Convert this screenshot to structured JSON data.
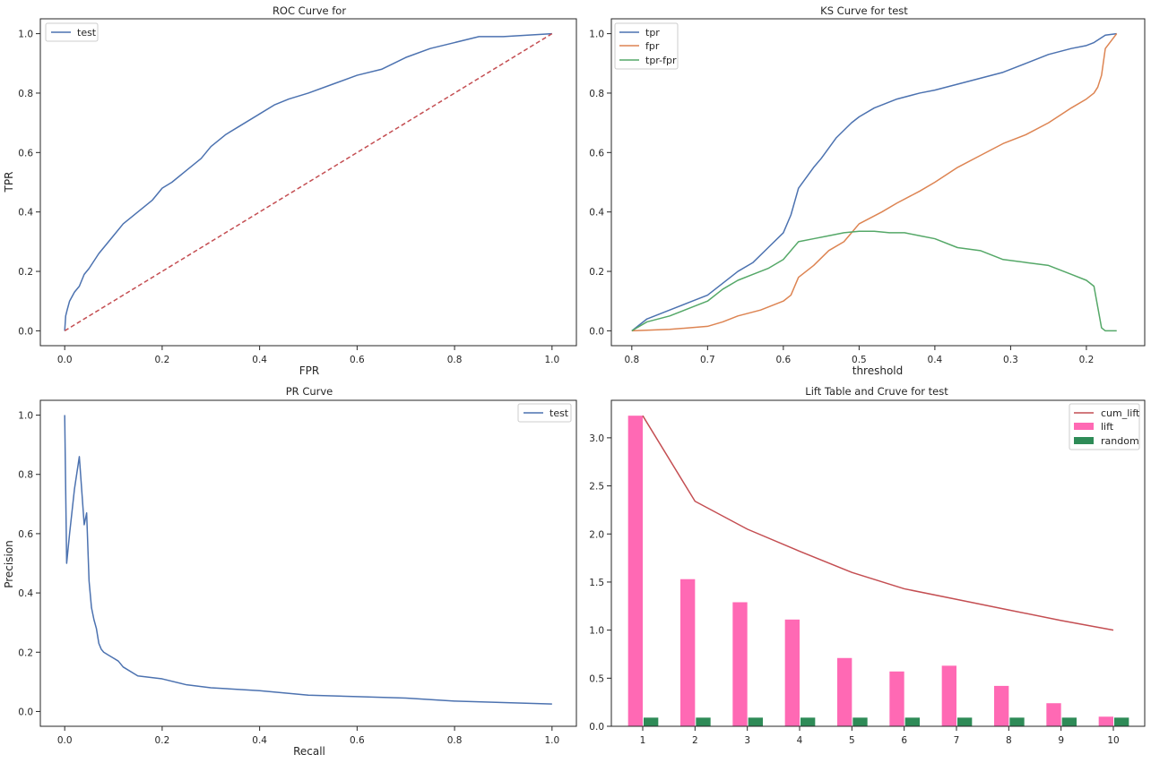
{
  "colors": {
    "blue": "#4c72b0",
    "orange": "#dd8452",
    "green": "#55a868",
    "red": "#c44e52",
    "pink": "#ff69b4",
    "darkgreen": "#2e8b57",
    "axis": "#262626"
  },
  "chart_data": [
    {
      "type": "line",
      "title": "ROC Curve for",
      "xlabel": "FPR",
      "ylabel": "TPR",
      "xlim": [
        -0.05,
        1.05
      ],
      "ylim": [
        -0.05,
        1.05
      ],
      "xticks": [
        0.0,
        0.2,
        0.4,
        0.6,
        0.8,
        1.0
      ],
      "yticks": [
        0.0,
        0.2,
        0.4,
        0.6,
        0.8,
        1.0
      ],
      "xtick_labels": [
        "0.0",
        "0.2",
        "0.4",
        "0.6",
        "0.8",
        "1.0"
      ],
      "ytick_labels": [
        "0.0",
        "0.2",
        "0.4",
        "0.6",
        "0.8",
        "1.0"
      ],
      "legend_position": "upper-left",
      "series": [
        {
          "name": "test",
          "color": "#4c72b0",
          "style": "solid",
          "in_legend": true,
          "x": [
            0.0,
            0.002,
            0.005,
            0.01,
            0.02,
            0.03,
            0.04,
            0.05,
            0.07,
            0.1,
            0.12,
            0.15,
            0.18,
            0.2,
            0.22,
            0.25,
            0.28,
            0.3,
            0.33,
            0.36,
            0.4,
            0.43,
            0.46,
            0.5,
            0.55,
            0.6,
            0.65,
            0.7,
            0.75,
            0.8,
            0.85,
            0.9,
            0.95,
            1.0
          ],
          "y": [
            0.0,
            0.05,
            0.07,
            0.1,
            0.13,
            0.15,
            0.19,
            0.21,
            0.26,
            0.32,
            0.36,
            0.4,
            0.44,
            0.48,
            0.5,
            0.54,
            0.58,
            0.62,
            0.66,
            0.69,
            0.73,
            0.76,
            0.78,
            0.8,
            0.83,
            0.86,
            0.88,
            0.92,
            0.95,
            0.97,
            0.99,
            0.99,
            0.995,
            1.0
          ]
        },
        {
          "name": "baseline",
          "color": "#c44e52",
          "style": "dashed",
          "in_legend": false,
          "x": [
            0.0,
            1.0
          ],
          "y": [
            0.0,
            1.0
          ]
        }
      ]
    },
    {
      "type": "line",
      "title": "KS Curve for test",
      "xlabel": "threshold",
      "ylabel": "",
      "xlim": [
        0.827,
        0.123
      ],
      "ylim": [
        -0.05,
        1.05
      ],
      "xticks": [
        0.8,
        0.7,
        0.6,
        0.5,
        0.4,
        0.3,
        0.2
      ],
      "yticks": [
        0.0,
        0.2,
        0.4,
        0.6,
        0.8,
        1.0
      ],
      "xtick_labels": [
        "0.8",
        "0.7",
        "0.6",
        "0.5",
        "0.4",
        "0.3",
        "0.2"
      ],
      "ytick_labels": [
        "0.0",
        "0.2",
        "0.4",
        "0.6",
        "0.8",
        "1.0"
      ],
      "legend_position": "upper-left",
      "series": [
        {
          "name": "tpr",
          "color": "#4c72b0",
          "in_legend": true,
          "x": [
            0.8,
            0.78,
            0.75,
            0.72,
            0.7,
            0.68,
            0.66,
            0.64,
            0.62,
            0.6,
            0.59,
            0.58,
            0.56,
            0.55,
            0.53,
            0.51,
            0.5,
            0.48,
            0.45,
            0.42,
            0.4,
            0.37,
            0.34,
            0.31,
            0.28,
            0.25,
            0.22,
            0.2,
            0.19,
            0.175,
            0.16
          ],
          "y": [
            0.0,
            0.04,
            0.07,
            0.1,
            0.12,
            0.16,
            0.2,
            0.23,
            0.28,
            0.33,
            0.39,
            0.48,
            0.55,
            0.58,
            0.65,
            0.7,
            0.72,
            0.75,
            0.78,
            0.8,
            0.81,
            0.83,
            0.85,
            0.87,
            0.9,
            0.93,
            0.95,
            0.96,
            0.97,
            0.995,
            1.0
          ]
        },
        {
          "name": "fpr",
          "color": "#dd8452",
          "in_legend": true,
          "x": [
            0.8,
            0.75,
            0.7,
            0.68,
            0.66,
            0.63,
            0.6,
            0.59,
            0.58,
            0.56,
            0.54,
            0.52,
            0.5,
            0.47,
            0.45,
            0.42,
            0.4,
            0.37,
            0.34,
            0.31,
            0.28,
            0.25,
            0.22,
            0.2,
            0.19,
            0.185,
            0.18,
            0.175,
            0.16
          ],
          "y": [
            0.0,
            0.005,
            0.015,
            0.03,
            0.05,
            0.07,
            0.1,
            0.12,
            0.18,
            0.22,
            0.27,
            0.3,
            0.36,
            0.4,
            0.43,
            0.47,
            0.5,
            0.55,
            0.59,
            0.63,
            0.66,
            0.7,
            0.75,
            0.78,
            0.8,
            0.82,
            0.86,
            0.95,
            1.0
          ]
        },
        {
          "name": "tpr-fpr",
          "color": "#55a868",
          "in_legend": true,
          "x": [
            0.8,
            0.78,
            0.75,
            0.72,
            0.7,
            0.68,
            0.66,
            0.64,
            0.62,
            0.6,
            0.58,
            0.56,
            0.54,
            0.52,
            0.5,
            0.48,
            0.46,
            0.44,
            0.42,
            0.4,
            0.37,
            0.34,
            0.31,
            0.28,
            0.25,
            0.22,
            0.2,
            0.19,
            0.185,
            0.18,
            0.175,
            0.16
          ],
          "y": [
            0.0,
            0.03,
            0.05,
            0.08,
            0.1,
            0.14,
            0.17,
            0.19,
            0.21,
            0.24,
            0.3,
            0.31,
            0.32,
            0.33,
            0.335,
            0.335,
            0.33,
            0.33,
            0.32,
            0.31,
            0.28,
            0.27,
            0.24,
            0.23,
            0.22,
            0.19,
            0.17,
            0.15,
            0.08,
            0.01,
            0.0,
            0.0
          ]
        }
      ]
    },
    {
      "type": "line",
      "title": "PR Curve",
      "xlabel": "Recall",
      "ylabel": "Precision",
      "xlim": [
        -0.05,
        1.05
      ],
      "ylim": [
        -0.05,
        1.05
      ],
      "xticks": [
        0.0,
        0.2,
        0.4,
        0.6,
        0.8,
        1.0
      ],
      "yticks": [
        0.0,
        0.2,
        0.4,
        0.6,
        0.8,
        1.0
      ],
      "xtick_labels": [
        "0.0",
        "0.2",
        "0.4",
        "0.6",
        "0.8",
        "1.0"
      ],
      "ytick_labels": [
        "0.0",
        "0.2",
        "0.4",
        "0.6",
        "0.8",
        "1.0"
      ],
      "legend_position": "upper-right",
      "series": [
        {
          "name": "test",
          "color": "#4c72b0",
          "in_legend": true,
          "x": [
            0.0,
            0.004,
            0.01,
            0.02,
            0.03,
            0.04,
            0.045,
            0.05,
            0.055,
            0.06,
            0.065,
            0.07,
            0.075,
            0.08,
            0.09,
            0.1,
            0.11,
            0.12,
            0.15,
            0.2,
            0.25,
            0.3,
            0.4,
            0.5,
            0.6,
            0.7,
            0.8,
            0.9,
            1.0
          ],
          "y": [
            1.0,
            0.5,
            0.6,
            0.75,
            0.86,
            0.63,
            0.67,
            0.44,
            0.35,
            0.31,
            0.28,
            0.23,
            0.21,
            0.2,
            0.19,
            0.18,
            0.17,
            0.15,
            0.12,
            0.11,
            0.09,
            0.08,
            0.07,
            0.055,
            0.05,
            0.045,
            0.035,
            0.03,
            0.025
          ]
        }
      ]
    },
    {
      "type": "bar",
      "title": "Lift Table and Cruve for test",
      "xlabel": "",
      "ylabel": "",
      "categories": [
        "1",
        "2",
        "3",
        "4",
        "5",
        "6",
        "7",
        "8",
        "9",
        "10"
      ],
      "ylim": [
        0,
        3.39
      ],
      "yticks": [
        0.0,
        0.5,
        1.0,
        1.5,
        2.0,
        2.5,
        3.0
      ],
      "ytick_labels": [
        "0.0",
        "0.5",
        "1.0",
        "1.5",
        "2.0",
        "2.5",
        "3.0"
      ],
      "legend_position": "upper-right",
      "series": [
        {
          "name": "cum_lift",
          "kind": "line",
          "color": "#c44e52",
          "values": [
            3.23,
            2.34,
            2.05,
            1.82,
            1.6,
            1.43,
            1.32,
            1.21,
            1.1,
            1.0
          ]
        },
        {
          "name": "lift",
          "kind": "bar",
          "color": "#ff69b4",
          "values": [
            3.23,
            1.53,
            1.29,
            1.11,
            0.71,
            0.57,
            0.63,
            0.42,
            0.24,
            0.1
          ]
        },
        {
          "name": "random",
          "kind": "bar",
          "color": "#2e8b57",
          "values": [
            0.09,
            0.09,
            0.09,
            0.09,
            0.09,
            0.09,
            0.09,
            0.09,
            0.09,
            0.09
          ]
        }
      ]
    }
  ]
}
